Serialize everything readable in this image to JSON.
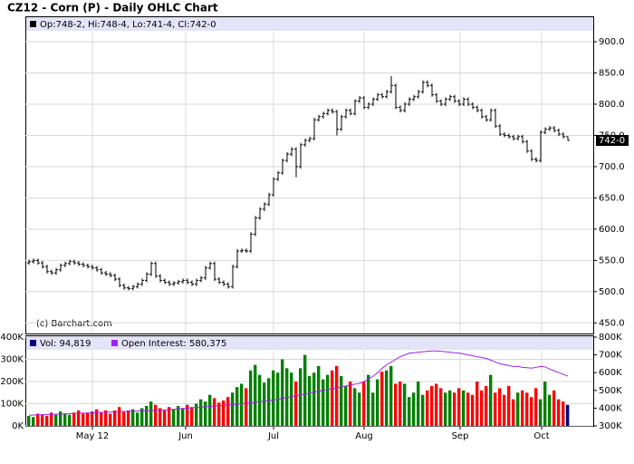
{
  "chart_data": [
    {
      "type": "ohlc",
      "title": "CZ12 - Corn (P) - Daily OHLC Chart",
      "legend_text": "Op:748-2, Hi:748-4, Lo:741-4, Cl:742-0",
      "annotation": "(c) Barchart.com",
      "last_price": {
        "value": 742,
        "label": "742-0"
      },
      "color": "#000000",
      "xlim": [
        -0.8,
        124.6
      ],
      "ylim": [
        433,
        916
      ],
      "yticks": [
        {
          "value": 450,
          "label": "450.0"
        },
        {
          "value": 500,
          "label": "500.0"
        },
        {
          "value": 550,
          "label": "550.0"
        },
        {
          "value": 600,
          "label": "600.0"
        },
        {
          "value": 650,
          "label": "650.0"
        },
        {
          "value": 700,
          "label": "700.0"
        },
        {
          "value": 750,
          "label": "750.0"
        },
        {
          "value": 800,
          "label": "800.0"
        },
        {
          "value": 850,
          "label": "850.0"
        },
        {
          "value": 900,
          "label": "900.0"
        }
      ],
      "grid": true,
      "open": [
        546,
        548,
        550,
        546,
        540,
        532,
        530,
        535,
        542,
        545,
        548,
        546,
        544,
        542,
        540,
        538,
        535,
        530,
        528,
        526,
        520,
        510,
        506,
        505,
        508,
        512,
        518,
        528,
        545,
        525,
        518,
        515,
        512,
        514,
        516,
        518,
        515,
        512,
        518,
        522,
        538,
        545,
        520,
        515,
        512,
        508,
        540,
        565,
        566,
        565,
        592,
        618,
        632,
        640,
        655,
        680,
        690,
        710,
        720,
        728,
        700,
        735,
        742,
        745,
        775,
        780,
        785,
        790,
        788,
        760,
        780,
        790,
        785,
        805,
        810,
        795,
        800,
        808,
        815,
        812,
        820,
        830,
        795,
        790,
        800,
        808,
        812,
        820,
        835,
        830,
        815,
        805,
        800,
        808,
        812,
        805,
        800,
        808,
        800,
        795,
        790,
        780,
        775,
        790,
        765,
        752,
        750,
        748,
        745,
        748,
        740,
        725,
        712,
        710,
        755,
        760,
        762,
        758,
        752,
        748
      ],
      "high": [
        551,
        553,
        553,
        549,
        543,
        535,
        538,
        545,
        548,
        551,
        551,
        549,
        547,
        545,
        543,
        541,
        538,
        533,
        531,
        529,
        523,
        513,
        509,
        511,
        515,
        521,
        531,
        548,
        548,
        528,
        521,
        518,
        517,
        519,
        521,
        521,
        518,
        521,
        525,
        541,
        548,
        548,
        523,
        518,
        515,
        543,
        568,
        569,
        569,
        595,
        621,
        635,
        643,
        658,
        683,
        693,
        713,
        723,
        731,
        731,
        738,
        745,
        748,
        778,
        783,
        788,
        793,
        793,
        791,
        783,
        793,
        793,
        808,
        813,
        813,
        803,
        811,
        818,
        818,
        823,
        845,
        833,
        798,
        803,
        811,
        815,
        823,
        838,
        838,
        833,
        818,
        808,
        811,
        815,
        815,
        808,
        811,
        811,
        803,
        798,
        793,
        783,
        793,
        793,
        768,
        755,
        753,
        751,
        751,
        751,
        743,
        728,
        715,
        758,
        763,
        765,
        765,
        761,
        755,
        748.5
      ],
      "low": [
        543,
        545,
        543,
        537,
        529,
        527,
        527,
        532,
        539,
        542,
        543,
        541,
        539,
        537,
        535,
        532,
        527,
        525,
        523,
        517,
        507,
        503,
        502,
        502,
        505,
        509,
        515,
        525,
        522,
        515,
        512,
        509,
        509,
        511,
        513,
        512,
        509,
        509,
        515,
        519,
        535,
        517,
        512,
        509,
        505,
        505,
        537,
        562,
        562,
        562,
        589,
        615,
        629,
        637,
        652,
        677,
        687,
        707,
        717,
        683,
        697,
        732,
        739,
        742,
        772,
        777,
        782,
        785,
        750,
        757,
        777,
        782,
        782,
        802,
        792,
        792,
        797,
        805,
        809,
        809,
        817,
        792,
        787,
        787,
        797,
        805,
        809,
        817,
        827,
        812,
        802,
        797,
        797,
        805,
        802,
        797,
        797,
        797,
        792,
        787,
        777,
        772,
        772,
        762,
        749,
        747,
        745,
        742,
        742,
        737,
        722,
        709,
        707,
        707,
        752,
        757,
        755,
        749,
        745,
        741.5
      ],
      "close": [
        548,
        550,
        546,
        540,
        532,
        530,
        535,
        542,
        545,
        548,
        546,
        544,
        542,
        540,
        538,
        535,
        530,
        528,
        526,
        520,
        510,
        506,
        505,
        508,
        512,
        518,
        528,
        545,
        525,
        518,
        515,
        512,
        514,
        516,
        518,
        515,
        512,
        518,
        522,
        538,
        545,
        520,
        515,
        512,
        508,
        540,
        565,
        566,
        565,
        592,
        618,
        632,
        640,
        655,
        680,
        690,
        710,
        720,
        728,
        700,
        735,
        742,
        745,
        775,
        780,
        785,
        790,
        788,
        760,
        780,
        790,
        785,
        805,
        810,
        795,
        800,
        808,
        815,
        812,
        820,
        830,
        795,
        790,
        800,
        808,
        812,
        820,
        835,
        830,
        815,
        805,
        800,
        808,
        812,
        805,
        800,
        808,
        800,
        795,
        790,
        780,
        775,
        790,
        765,
        752,
        750,
        748,
        745,
        748,
        740,
        725,
        712,
        710,
        755,
        760,
        762,
        758,
        752,
        748,
        742
      ]
    },
    {
      "type": "bar",
      "xlim": [
        -0.8,
        124.6
      ],
      "xticks": [
        {
          "value": 14,
          "label": "May 12"
        },
        {
          "value": 34.6,
          "label": "Jun"
        },
        {
          "value": 54,
          "label": "Jul"
        },
        {
          "value": 74,
          "label": "Aug"
        },
        {
          "value": 95.2,
          "label": "Sep"
        },
        {
          "value": 113.2,
          "label": "Oct"
        }
      ],
      "ylim": [
        0,
        400000
      ],
      "yticks": [
        {
          "value": 0,
          "label": "0K"
        },
        {
          "value": 100000,
          "label": "100K"
        },
        {
          "value": 200000,
          "label": "200K"
        },
        {
          "value": 300000,
          "label": "300K"
        },
        {
          "value": 400000,
          "label": "400K"
        }
      ],
      "y2lim": [
        300000,
        800000
      ],
      "y2ticks": [
        {
          "value": 300000,
          "label": "300K"
        },
        {
          "value": 400000,
          "label": "400K"
        },
        {
          "value": 500000,
          "label": "500K"
        },
        {
          "value": 600000,
          "label": "600K"
        },
        {
          "value": 700000,
          "label": "700K"
        },
        {
          "value": 800000,
          "label": "800K"
        }
      ],
      "up_color": "#008000",
      "down_color": "#ff0000",
      "last_color": "#000080",
      "series": [
        {
          "name": "Vol: 94,819",
          "color": "#000080",
          "values": [
            45000,
            40000,
            55000,
            50000,
            45000,
            60000,
            50000,
            65000,
            55000,
            50000,
            60000,
            70000,
            55000,
            60000,
            65000,
            75000,
            60000,
            70000,
            55000,
            70000,
            85000,
            65000,
            70000,
            75000,
            60000,
            80000,
            90000,
            110000,
            95000,
            80000,
            70000,
            85000,
            75000,
            90000,
            80000,
            95000,
            85000,
            100000,
            120000,
            110000,
            140000,
            125000,
            105000,
            115000,
            130000,
            150000,
            175000,
            190000,
            170000,
            250000,
            275000,
            230000,
            195000,
            215000,
            250000,
            240000,
            300000,
            260000,
            240000,
            200000,
            260000,
            320000,
            225000,
            240000,
            270000,
            210000,
            230000,
            250000,
            270000,
            225000,
            180000,
            200000,
            170000,
            150000,
            200000,
            230000,
            150000,
            210000,
            245000,
            250000,
            270000,
            190000,
            200000,
            190000,
            130000,
            150000,
            200000,
            140000,
            160000,
            180000,
            190000,
            170000,
            150000,
            160000,
            150000,
            170000,
            160000,
            150000,
            140000,
            200000,
            160000,
            180000,
            230000,
            150000,
            170000,
            140000,
            180000,
            120000,
            150000,
            160000,
            150000,
            130000,
            170000,
            120000,
            200000,
            140000,
            160000,
            120000,
            110000,
            94819
          ]
        },
        {
          "name": "Open Interest: 580,375",
          "color": "#a020f0",
          "axis": "y2",
          "values": [
            360000,
            361000,
            362000,
            363000,
            364000,
            365000,
            366000,
            367000,
            368000,
            369000,
            370000,
            371000,
            372000,
            373000,
            374000,
            375000,
            376000,
            377000,
            378000,
            379000,
            380000,
            381000,
            382000,
            383000,
            384000,
            385000,
            386000,
            387000,
            388000,
            389000,
            390000,
            392000,
            394000,
            396000,
            398000,
            400000,
            402000,
            404000,
            406000,
            408000,
            410000,
            412000,
            414000,
            416000,
            418000,
            420000,
            422000,
            425000,
            428000,
            431000,
            434000,
            437000,
            440000,
            443000,
            446000,
            450000,
            455000,
            460000,
            465000,
            470000,
            475000,
            480000,
            485000,
            490000,
            495000,
            500000,
            505000,
            510000,
            515000,
            520000,
            525000,
            530000,
            535000,
            540000,
            550000,
            565000,
            580000,
            600000,
            625000,
            645000,
            660000,
            675000,
            690000,
            700000,
            710000,
            712000,
            715000,
            718000,
            720000,
            722000,
            722000,
            720000,
            718000,
            715000,
            712000,
            710000,
            705000,
            700000,
            695000,
            690000,
            685000,
            680000,
            670000,
            660000,
            650000,
            645000,
            640000,
            635000,
            635000,
            630000,
            628000,
            625000,
            630000,
            635000,
            632000,
            620000,
            610000,
            600000,
            590000,
            580375
          ]
        }
      ]
    }
  ]
}
